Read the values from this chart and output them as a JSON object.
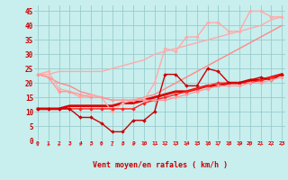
{
  "title": "",
  "xlabel": "Vent moyen/en rafales ( km/h )",
  "background_color": "#c8eeee",
  "grid_color": "#99cccc",
  "x": [
    0,
    1,
    2,
    3,
    4,
    5,
    6,
    7,
    8,
    9,
    10,
    11,
    12,
    13,
    14,
    15,
    16,
    17,
    18,
    19,
    20,
    21,
    22,
    23
  ],
  "lines": [
    {
      "y": [
        23,
        23,
        24,
        24,
        24,
        24,
        24,
        25,
        26,
        27,
        28,
        30,
        31,
        32,
        33,
        34,
        35,
        36,
        37,
        38,
        39,
        40,
        42,
        43
      ],
      "color": "#ffaaaa",
      "lw": 1.0,
      "marker": null
    },
    {
      "y": [
        23,
        24,
        18,
        17,
        15,
        16,
        15,
        10,
        13,
        14,
        14,
        20,
        32,
        31,
        36,
        36,
        41,
        41,
        38,
        38,
        45,
        45,
        43,
        43
      ],
      "color": "#ffaaaa",
      "lw": 1.0,
      "marker": "D",
      "ms": 2.0
    },
    {
      "y": [
        23,
        22,
        20,
        19,
        17,
        16,
        15,
        14,
        14,
        14,
        15,
        16,
        18,
        20,
        22,
        24,
        26,
        28,
        30,
        32,
        34,
        36,
        38,
        40
      ],
      "color": "#ff8888",
      "lw": 1.0,
      "marker": null
    },
    {
      "y": [
        11,
        11,
        11,
        12,
        12,
        12,
        12,
        12,
        13,
        13,
        14,
        15,
        16,
        17,
        17,
        18,
        19,
        19,
        20,
        20,
        21,
        21,
        22,
        23
      ],
      "color": "#dd0000",
      "lw": 2.0,
      "marker": null
    },
    {
      "y": [
        11,
        11,
        11,
        11,
        11,
        11,
        11,
        11,
        11,
        11,
        13,
        14,
        15,
        16,
        17,
        18,
        19,
        20,
        20,
        20,
        20,
        21,
        22,
        23
      ],
      "color": "#ff2222",
      "lw": 1.0,
      "marker": "D",
      "ms": 2.0
    },
    {
      "y": [
        11,
        11,
        11,
        11,
        8,
        8,
        6,
        3,
        3,
        7,
        7,
        10,
        23,
        23,
        19,
        19,
        25,
        24,
        20,
        20,
        21,
        22,
        21,
        23
      ],
      "color": "#cc0000",
      "lw": 1.0,
      "marker": "D",
      "ms": 2.0
    },
    {
      "y": [
        23,
        22,
        17,
        17,
        16,
        15,
        15,
        14,
        14,
        14,
        14,
        14,
        14,
        15,
        16,
        17,
        18,
        19,
        19,
        19,
        20,
        20,
        21,
        22
      ],
      "color": "#ff9999",
      "lw": 1.0,
      "marker": "D",
      "ms": 2.0
    }
  ],
  "xlim": [
    -0.3,
    23.3
  ],
  "ylim": [
    0,
    47
  ],
  "yticks": [
    0,
    5,
    10,
    15,
    20,
    25,
    30,
    35,
    40,
    45
  ],
  "xtick_labels": [
    "0",
    "1",
    "2",
    "3",
    "4",
    "5",
    "6",
    "7",
    "8",
    "9",
    "10",
    "11",
    "12",
    "13",
    "14",
    "15",
    "16",
    "17",
    "18",
    "19",
    "20",
    "21",
    "22",
    "23"
  ],
  "arrow_angles_deg": [
    90,
    90,
    90,
    0,
    0,
    0,
    45,
    90,
    135,
    135,
    135,
    135,
    135,
    45,
    45,
    45,
    45,
    45,
    45,
    45,
    45,
    45,
    45,
    45
  ]
}
